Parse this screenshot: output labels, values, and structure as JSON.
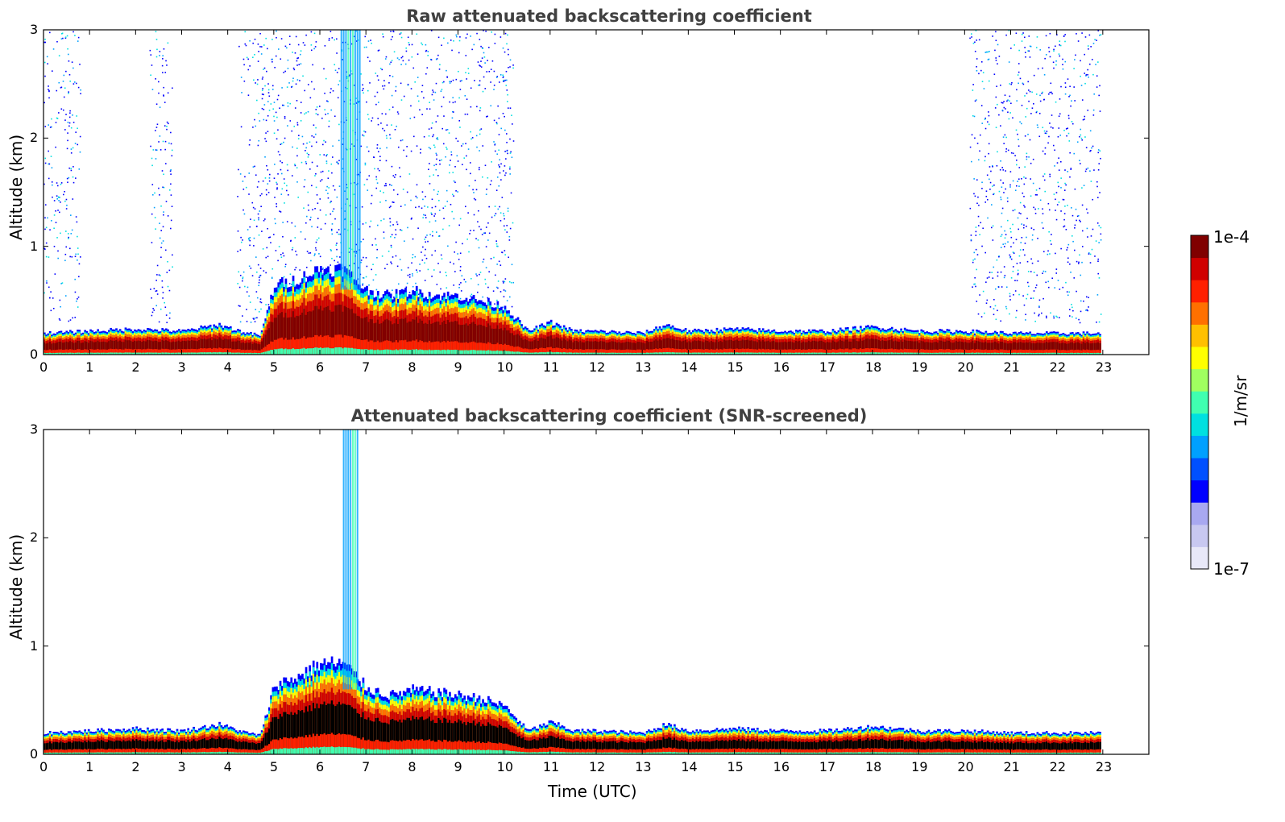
{
  "chart_data": [
    {
      "type": "heatmap",
      "title": "Raw attenuated backscattering coefficient",
      "xlabel": "",
      "ylabel": "Altitude (km)",
      "xlim": [
        0,
        24
      ],
      "ylim": [
        0,
        3
      ],
      "x_ticks": [
        0,
        1,
        2,
        3,
        4,
        5,
        6,
        7,
        8,
        9,
        10,
        11,
        12,
        13,
        14,
        15,
        16,
        17,
        18,
        19,
        20,
        21,
        22,
        23
      ],
      "y_ticks": [
        0,
        1,
        2,
        3
      ],
      "data_extent_x": [
        0,
        22.95
      ],
      "boundary_layer_top_km": {
        "time": [
          0,
          1,
          2,
          3,
          3.8,
          4.4,
          4.7,
          5,
          5.5,
          6,
          6.5,
          7,
          7.5,
          8,
          8.5,
          9,
          9.5,
          10,
          10.5,
          11,
          11.5,
          12,
          13,
          13.5,
          14,
          15,
          16,
          17,
          18,
          19,
          20,
          21,
          22,
          22.95
        ],
        "height": [
          0.2,
          0.22,
          0.24,
          0.22,
          0.28,
          0.2,
          0.18,
          0.65,
          0.7,
          0.8,
          0.8,
          0.6,
          0.55,
          0.6,
          0.55,
          0.55,
          0.5,
          0.45,
          0.22,
          0.3,
          0.22,
          0.22,
          0.2,
          0.28,
          0.22,
          0.24,
          0.22,
          0.22,
          0.26,
          0.22,
          0.22,
          0.2,
          0.2,
          0.2
        ]
      },
      "noise_bands": [
        [
          0,
          0.8
        ],
        [
          2.3,
          2.8
        ],
        [
          4.2,
          4.8
        ],
        [
          4.8,
          10.2
        ],
        [
          20.1,
          22.95
        ]
      ],
      "plume": {
        "time_start": 6.45,
        "time_end": 6.85,
        "top_km": 3.0
      }
    },
    {
      "type": "heatmap",
      "title": "Attenuated backscattering coefficient (SNR-screened)",
      "xlabel": "Time (UTC)",
      "ylabel": "Altitude (km)",
      "xlim": [
        0,
        24
      ],
      "ylim": [
        0,
        3
      ],
      "x_ticks": [
        0,
        1,
        2,
        3,
        4,
        5,
        6,
        7,
        8,
        9,
        10,
        11,
        12,
        13,
        14,
        15,
        16,
        17,
        18,
        19,
        20,
        21,
        22,
        23
      ],
      "y_ticks": [
        0,
        1,
        2,
        3
      ],
      "data_extent_x": [
        0,
        22.95
      ],
      "boundary_layer_top_km": {
        "time": [
          0,
          1,
          2,
          3,
          3.8,
          4.4,
          4.7,
          5,
          5.5,
          6,
          6.5,
          7,
          7.5,
          8,
          8.5,
          9,
          9.5,
          10,
          10.5,
          11,
          11.5,
          12,
          13,
          13.5,
          14,
          15,
          16,
          17,
          18,
          19,
          20,
          21,
          22,
          22.95
        ],
        "height": [
          0.2,
          0.22,
          0.24,
          0.22,
          0.28,
          0.2,
          0.18,
          0.65,
          0.72,
          0.85,
          0.85,
          0.62,
          0.55,
          0.6,
          0.58,
          0.55,
          0.52,
          0.45,
          0.22,
          0.3,
          0.22,
          0.22,
          0.2,
          0.28,
          0.22,
          0.24,
          0.22,
          0.22,
          0.26,
          0.22,
          0.22,
          0.2,
          0.2,
          0.2
        ]
      },
      "plume": {
        "time_start": 6.5,
        "time_end": 6.8,
        "top_km": 3.0
      }
    }
  ],
  "colorbar": {
    "label": "1/m/sr",
    "max_label": "1e-4",
    "min_label": "1e-7",
    "colormap": [
      "#e8e8f8",
      "#c8c8f0",
      "#a8a8f0",
      "#0000ff",
      "#0050ff",
      "#00a0ff",
      "#00e0e0",
      "#40ffb0",
      "#a0ff60",
      "#ffff00",
      "#ffc000",
      "#ff7000",
      "#ff2000",
      "#d00000",
      "#800000"
    ]
  }
}
